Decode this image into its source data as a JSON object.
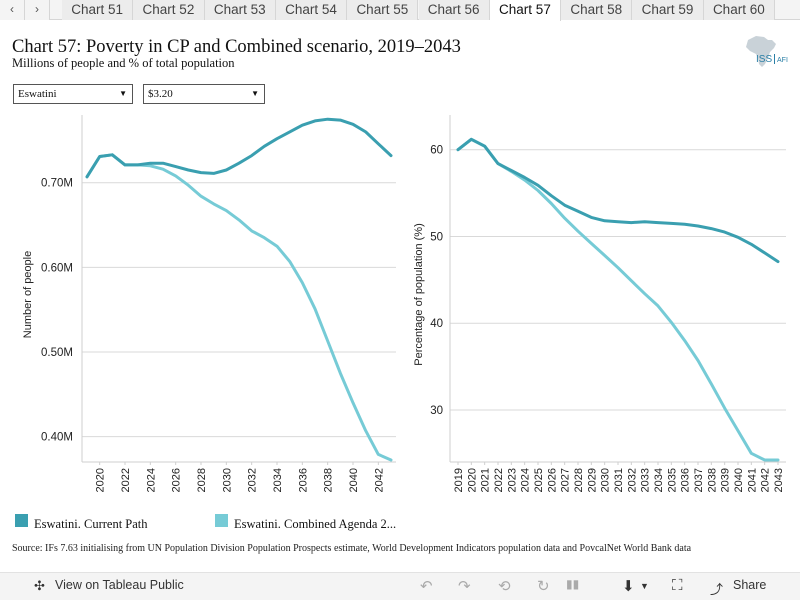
{
  "tabs": {
    "prev_label": "‹",
    "next_label": "›",
    "items": [
      "Chart 51",
      "Chart 52",
      "Chart 53",
      "Chart 54",
      "Chart 55",
      "Chart 56",
      "Chart 57",
      "Chart 58",
      "Chart 59",
      "Chart 60"
    ],
    "active": "Chart 57"
  },
  "header": {
    "title": "Chart 57: Poverty in CP and Combined scenario, 2019–2043",
    "subtitle": "Millions of people and % of total population",
    "logo_text": "ISS",
    "logo_suffix": "AFI"
  },
  "filters": {
    "country": "Eswatini",
    "poverty_line": "$3.20"
  },
  "colors": {
    "current_path": "#3a9fb0",
    "combined": "#76cbd6",
    "grid": "#d9d9d9"
  },
  "chart_data": [
    {
      "type": "line",
      "ylabel": "Number of people",
      "ylim": [
        0.37,
        0.78
      ],
      "yticks": [
        0.4,
        0.5,
        0.6,
        0.7
      ],
      "ytick_labels": [
        "0.40M",
        "0.50M",
        "0.60M",
        "0.70M"
      ],
      "xticks": [
        2020,
        2022,
        2024,
        2026,
        2028,
        2030,
        2032,
        2034,
        2036,
        2038,
        2040,
        2042
      ],
      "x": [
        2019,
        2020,
        2021,
        2022,
        2023,
        2024,
        2025,
        2026,
        2027,
        2028,
        2029,
        2030,
        2031,
        2032,
        2033,
        2034,
        2035,
        2036,
        2037,
        2038,
        2039,
        2040,
        2041,
        2042,
        2043
      ],
      "series": [
        {
          "name": "Eswatini. Current Path",
          "values": [
            0.707,
            0.731,
            0.733,
            0.721,
            0.721,
            0.723,
            0.723,
            0.719,
            0.715,
            0.712,
            0.711,
            0.715,
            0.723,
            0.732,
            0.743,
            0.752,
            0.76,
            0.768,
            0.773,
            0.775,
            0.774,
            0.769,
            0.76,
            0.746,
            0.732
          ]
        },
        {
          "name": "Eswatini. Combined Agenda 2...",
          "values": [
            0.707,
            0.731,
            0.733,
            0.721,
            0.721,
            0.72,
            0.716,
            0.708,
            0.697,
            0.684,
            0.675,
            0.667,
            0.656,
            0.643,
            0.635,
            0.625,
            0.607,
            0.582,
            0.551,
            0.513,
            0.475,
            0.44,
            0.407,
            0.379,
            0.356
          ]
        }
      ]
    },
    {
      "type": "line",
      "ylabel": "Percentage of population (%)",
      "ylim": [
        24,
        64
      ],
      "yticks": [
        30,
        40,
        50,
        60
      ],
      "ytick_labels": [
        "30",
        "40",
        "50",
        "60"
      ],
      "xticks": [
        2019,
        2020,
        2021,
        2022,
        2023,
        2024,
        2025,
        2026,
        2027,
        2028,
        2029,
        2030,
        2031,
        2032,
        2033,
        2034,
        2035,
        2036,
        2037,
        2038,
        2039,
        2040,
        2041,
        2042,
        2043
      ],
      "x": [
        2019,
        2020,
        2021,
        2022,
        2023,
        2024,
        2025,
        2026,
        2027,
        2028,
        2029,
        2030,
        2031,
        2032,
        2033,
        2034,
        2035,
        2036,
        2037,
        2038,
        2039,
        2040,
        2041,
        2042,
        2043
      ],
      "series": [
        {
          "name": "Eswatini. Current Path",
          "values": [
            60.0,
            61.2,
            60.4,
            58.4,
            57.6,
            56.8,
            55.9,
            54.7,
            53.6,
            52.9,
            52.2,
            51.8,
            51.7,
            51.6,
            51.7,
            51.6,
            51.5,
            51.4,
            51.2,
            50.9,
            50.5,
            49.9,
            49.1,
            48.1,
            47.1
          ]
        },
        {
          "name": "Eswatini. Combined Agenda 2...",
          "values": [
            60.0,
            61.2,
            60.4,
            58.4,
            57.5,
            56.5,
            55.3,
            53.8,
            52.1,
            50.6,
            49.2,
            47.8,
            46.4,
            44.9,
            43.4,
            42.0,
            40.1,
            38.0,
            35.7,
            33.0,
            30.2,
            27.6,
            25.0,
            22.5,
            20.3
          ]
        }
      ]
    }
  ],
  "legend": {
    "items": [
      "Eswatini. Current Path",
      "Eswatini. Combined Agenda 2..."
    ]
  },
  "source": "Source: IFs 7.63 initialising from UN Population Division Population Prospects estimate, World Development Indicators population data and PovcalNet World Bank data",
  "toolbar": {
    "view_label": "View on Tableau Public",
    "share_label": "Share"
  }
}
